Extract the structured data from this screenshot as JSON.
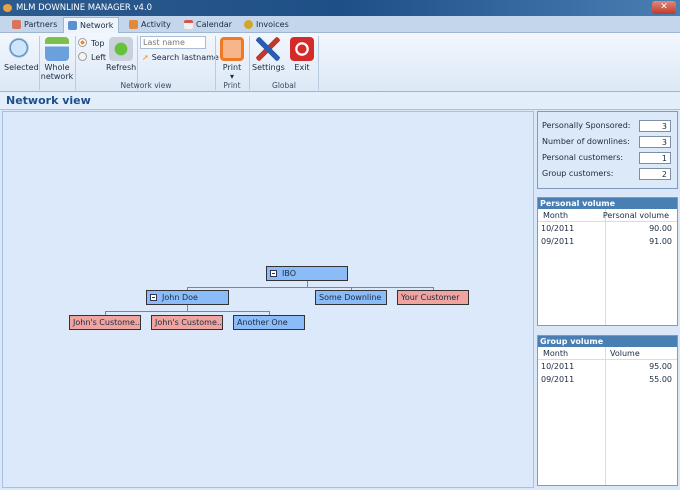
{
  "window": {
    "title": "MLM DOWNLINE MANAGER v4.0",
    "close": "✕"
  },
  "tabs": [
    {
      "label": "Partners"
    },
    {
      "label": "Network"
    },
    {
      "label": "Activity"
    },
    {
      "label": "Calendar"
    },
    {
      "label": "Invoices"
    }
  ],
  "ribbon": {
    "selected": "Selected",
    "whole1": "Whole",
    "whole2": "network",
    "top": "Top",
    "left": "Left",
    "refresh": "Refresh",
    "search_placeholder": "Last name",
    "search_button": "Search lastname",
    "group_network_view": "Network view",
    "print": "Print",
    "print_arrow": "▾",
    "group_print": "Print",
    "settings": "Settings",
    "exit": "Exit",
    "group_global": "Global"
  },
  "view_title": "Network view",
  "tree": {
    "root": "IBO",
    "john": "John Doe",
    "some": "Some Downline",
    "your": "Your Customer",
    "c1": "John's Custome...",
    "c2": "John's Custome...",
    "another": "Another One"
  },
  "stats": [
    {
      "label": "Personally Sponsored:",
      "value": "3"
    },
    {
      "label": "Number of downlines:",
      "value": "3"
    },
    {
      "label": "Personal customers:",
      "value": "1"
    },
    {
      "label": "Group customers:",
      "value": "2"
    }
  ],
  "personal_volume": {
    "title": "Personal volume",
    "col1": "Month",
    "col2": "Personal volume",
    "rows": [
      {
        "month": "10/2011",
        "value": "90.00"
      },
      {
        "month": "09/2011",
        "value": "91.00"
      }
    ]
  },
  "group_volume": {
    "title": "Group volume",
    "col1": "Month",
    "col2": "Volume",
    "rows": [
      {
        "month": "10/2011",
        "value": "95.00"
      },
      {
        "month": "09/2011",
        "value": "55.00"
      }
    ]
  },
  "colors": {
    "node_partner": "#8cbcf8",
    "node_customer": "#f0a4a0",
    "connector": "#3a9ad9",
    "header": "#4a7fb4"
  }
}
